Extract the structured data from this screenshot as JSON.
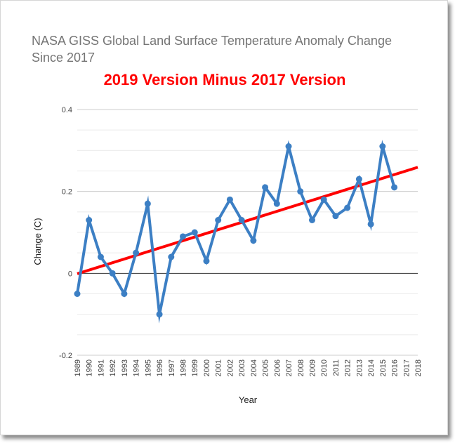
{
  "chart_data": {
    "type": "line",
    "title": "NASA GISS Global Land Surface Temperature Anomaly Change Since 2017",
    "subtitle": "2019 Version Minus 2017 Version",
    "xlabel": "Year",
    "ylabel": "Change (C)",
    "ylim": [
      -0.2,
      0.4
    ],
    "yticks": [
      -0.2,
      0,
      0.2,
      0.4
    ],
    "ytick_labels": [
      "-0.2",
      "0",
      "0.2",
      "0.4"
    ],
    "grid": true,
    "x": [
      "1989",
      "1990",
      "1991",
      "1992",
      "1993",
      "1994",
      "1995",
      "1996",
      "1997",
      "1998",
      "1999",
      "2000",
      "2001",
      "2002",
      "2003",
      "2004",
      "2005",
      "2006",
      "2007",
      "2008",
      "2009",
      "2010",
      "2011",
      "2012",
      "2013",
      "2014",
      "2015",
      "2016",
      "2017",
      "2018"
    ],
    "series": [
      {
        "color": "#3c7fc4",
        "values": [
          -0.05,
          0.13,
          0.04,
          0.0,
          -0.05,
          0.05,
          0.17,
          -0.1,
          0.04,
          0.09,
          0.1,
          0.03,
          0.13,
          0.18,
          0.13,
          0.08,
          0.21,
          0.17,
          0.31,
          0.2,
          0.13,
          0.18,
          0.14,
          0.16,
          0.23,
          0.12,
          0.31,
          0.21,
          null,
          null
        ]
      }
    ],
    "trendline": {
      "color": "#ff0000",
      "start": {
        "x": "1989",
        "y": -0.001
      },
      "end": {
        "x": "2018",
        "y": 0.259
      }
    }
  }
}
